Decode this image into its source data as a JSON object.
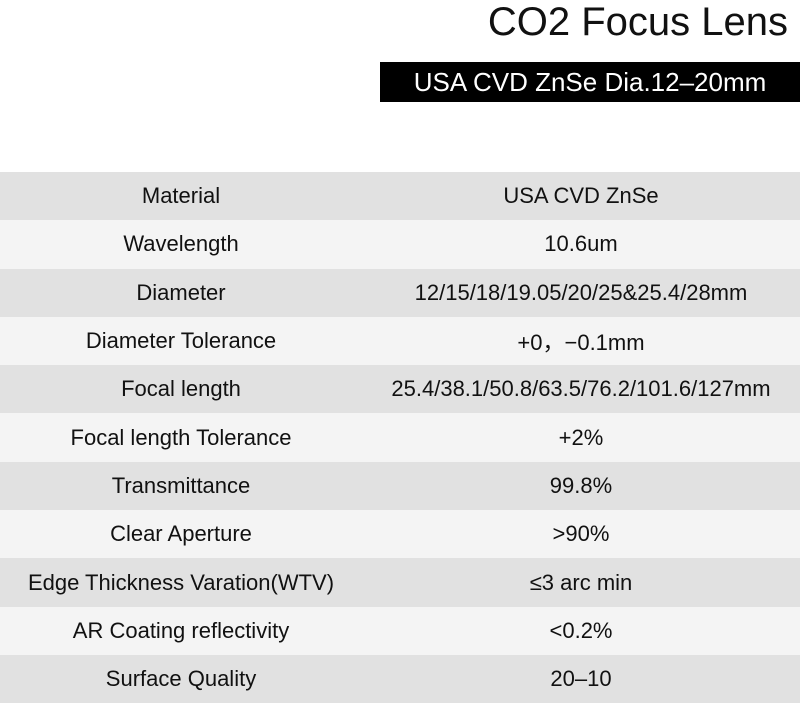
{
  "header": {
    "title": "CO2 Focus Lens",
    "subtitle": "USA CVD ZnSe Dia.12–20mm"
  },
  "table": {
    "rows": [
      [
        "Material",
        "USA CVD ZnSe"
      ],
      [
        "Wavelength",
        "10.6um"
      ],
      [
        "Diameter",
        "12/15/18/19.05/20/25&25.4/28mm"
      ],
      [
        "Diameter Tolerance",
        "+0，−0.1mm"
      ],
      [
        "Focal length",
        "25.4/38.1/50.8/63.5/76.2/101.6/127mm"
      ],
      [
        "Focal length Tolerance",
        "+2%"
      ],
      [
        "Transmittance",
        "99.8%"
      ],
      [
        "Clear Aperture",
        ">90%"
      ],
      [
        "Edge Thickness Varation(WTV)",
        "≤3 arc min"
      ],
      [
        "AR Coating reflectivity",
        "<0.2%"
      ],
      [
        "Surface Quality",
        "20–10"
      ]
    ]
  }
}
